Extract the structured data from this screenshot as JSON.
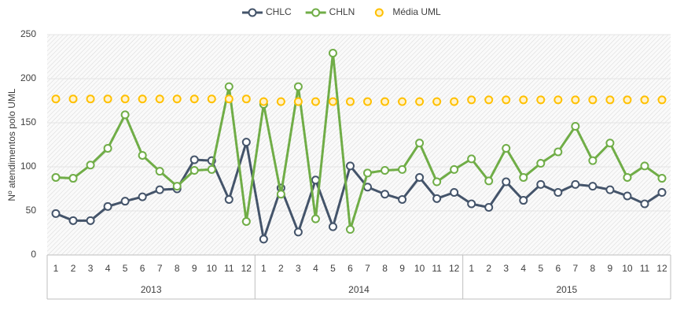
{
  "chart_data": {
    "type": "line",
    "ylabel": "Nº atendimentos polo UML",
    "categories": [
      "1",
      "2",
      "3",
      "4",
      "5",
      "6",
      "7",
      "8",
      "9",
      "10",
      "11",
      "12",
      "1",
      "2",
      "3",
      "4",
      "5",
      "6",
      "7",
      "8",
      "9",
      "10",
      "11",
      "12",
      "1",
      "2",
      "3",
      "4",
      "5",
      "6",
      "7",
      "8",
      "9",
      "10",
      "11",
      "12"
    ],
    "x_groups": [
      "2013",
      "2014",
      "2015"
    ],
    "series": [
      {
        "name": "CHLC",
        "color": "#44546a",
        "line": true,
        "values": [
          47,
          39,
          39,
          55,
          61,
          66,
          74,
          75,
          108,
          107,
          63,
          128,
          18,
          76,
          26,
          85,
          32,
          101,
          77,
          69,
          63,
          88,
          64,
          71,
          58,
          54,
          83,
          62,
          80,
          71,
          80,
          78,
          74,
          67,
          58,
          71
        ]
      },
      {
        "name": "CHLN",
        "color": "#70ad47",
        "line": true,
        "values": [
          88,
          87,
          102,
          121,
          159,
          113,
          95,
          78,
          96,
          97,
          191,
          38,
          171,
          69,
          191,
          41,
          229,
          29,
          93,
          96,
          97,
          127,
          83,
          97,
          109,
          84,
          121,
          88,
          104,
          117,
          146,
          107,
          127,
          88,
          101,
          87
        ]
      },
      {
        "name": "Média UML",
        "color": "#ffc000",
        "line": false,
        "values": [
          177,
          177,
          177,
          177,
          177,
          177,
          177,
          177,
          177,
          177,
          177,
          177,
          174,
          174,
          174,
          174,
          174,
          174,
          174,
          174,
          174,
          174,
          174,
          174,
          176,
          176,
          176,
          176,
          176,
          176,
          176,
          176,
          176,
          176,
          176,
          176
        ]
      }
    ],
    "ylim": [
      0,
      250
    ],
    "yticks": [
      0,
      50,
      100,
      150,
      200,
      250
    ],
    "grid": true,
    "legend": "top"
  }
}
